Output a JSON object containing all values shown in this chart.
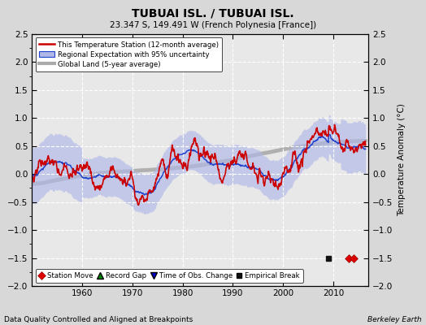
{
  "title": "TUBUAI ISL. / TUBUAI ISL.",
  "subtitle": "23.347 S, 149.491 W (French Polynesia [France])",
  "xlabel_bottom": "Data Quality Controlled and Aligned at Breakpoints",
  "xlabel_right": "Berkeley Earth",
  "ylabel": "Temperature Anomaly (°C)",
  "ylim": [
    -2.0,
    2.5
  ],
  "xlim": [
    1950,
    2017
  ],
  "yticks": [
    -2,
    -1.5,
    -1,
    -0.5,
    0,
    0.5,
    1,
    1.5,
    2,
    2.5
  ],
  "xticks": [
    1960,
    1970,
    1980,
    1990,
    2000,
    2010
  ],
  "bg_color": "#d8d8d8",
  "plot_bg_color": "#e8e8e8",
  "station_move_color": "#dd0000",
  "record_gap_color": "#008800",
  "obs_change_color": "#0000cc",
  "empirical_break_color": "#111111",
  "regional_line_color": "#2244cc",
  "regional_fill_color": "#b0b8e8",
  "station_line_color": "#cc0000",
  "global_line_color": "#aaaaaa",
  "station_move_years": [
    2013,
    2014
  ],
  "empirical_break_years": [
    2009
  ],
  "marker_y": -1.5,
  "seed": 17
}
